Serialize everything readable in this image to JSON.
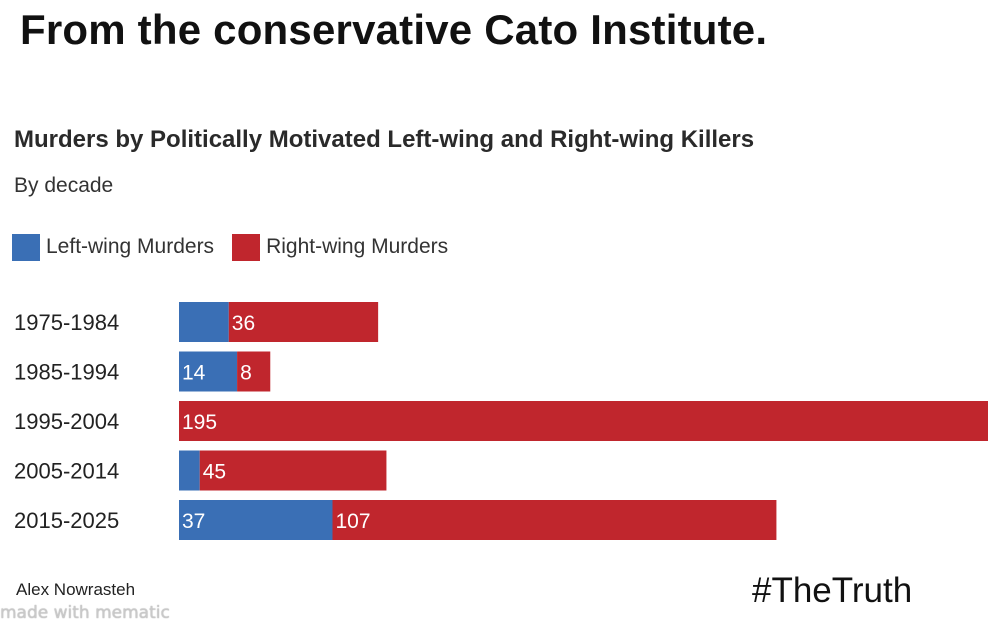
{
  "headline": "From the conservative Cato Institute.",
  "colors": {
    "left": "#3a6fb5",
    "right": "#c0262d"
  },
  "chart_data": {
    "type": "bar",
    "orientation": "horizontal",
    "stacked": true,
    "title": "Murders by Politically Motivated Left-wing and Right-wing Killers",
    "subtitle": "By decade",
    "legend_position": "top-left",
    "categories": [
      "1975-1984",
      "1985-1994",
      "1995-2004",
      "2005-2014",
      "2015-2025"
    ],
    "series": [
      {
        "name": "Left-wing Murders",
        "values": [
          12,
          14,
          0,
          5,
          37
        ],
        "labels": [
          "",
          "14",
          "",
          "",
          "37"
        ]
      },
      {
        "name": "Right-wing Murders",
        "values": [
          36,
          8,
          195,
          45,
          107
        ],
        "labels": [
          "36",
          "8",
          "195",
          "45",
          "107"
        ]
      }
    ],
    "xlim": [
      0,
      195
    ],
    "grid": false
  },
  "source": "Alex Nowrasteh",
  "watermark": "made with mematic",
  "hashtag": "#TheTruth"
}
